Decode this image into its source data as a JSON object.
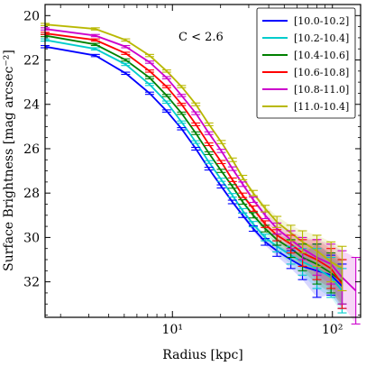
{
  "chart_data": {
    "type": "line",
    "annotation": "C < 2.6",
    "xlabel": "Radius [kpc]",
    "ylabel": "Surface Brightness [mag arcsec⁻²]",
    "x_scale": "log",
    "xlim": [
      1.6,
      150
    ],
    "ylim": [
      33.6,
      19.5
    ],
    "y_inverted": true,
    "x_ticks": [
      {
        "value": 10,
        "label": "10¹"
      },
      {
        "value": 100,
        "label": "10²"
      }
    ],
    "y_ticks": [
      20,
      22,
      24,
      26,
      28,
      30,
      32
    ],
    "grid": false,
    "legend": {
      "placement": "top-right"
    },
    "x": [
      1.6,
      3.3,
      5.1,
      7.2,
      9.2,
      11.4,
      14.0,
      16.9,
      20.2,
      23.7,
      27.5,
      32.0,
      38.0,
      45.0,
      55.0,
      65.0,
      80.0,
      98.0,
      115.0,
      140.0
    ],
    "series": [
      {
        "name": "[10.0-10.2]",
        "color": "#0000ff",
        "values": [
          21.4,
          21.8,
          22.6,
          23.5,
          24.3,
          25.1,
          26.0,
          26.9,
          27.7,
          28.4,
          29.0,
          29.6,
          30.2,
          30.6,
          31.0,
          31.3,
          31.5,
          31.7,
          32.2,
          null
        ],
        "err": [
          0.05,
          0.05,
          0.05,
          0.05,
          0.05,
          0.05,
          0.06,
          0.06,
          0.07,
          0.08,
          0.1,
          0.12,
          0.15,
          0.25,
          0.4,
          0.6,
          1.2,
          0.9,
          1.0,
          null
        ]
      },
      {
        "name": "[10.2-10.4]",
        "color": "#00cccc",
        "values": [
          21.1,
          21.5,
          22.2,
          23.1,
          23.9,
          24.8,
          25.7,
          26.6,
          27.4,
          28.1,
          28.8,
          29.4,
          30.0,
          30.4,
          30.8,
          31.1,
          31.4,
          31.8,
          32.4,
          null
        ],
        "err": [
          0.05,
          0.05,
          0.05,
          0.05,
          0.05,
          0.05,
          0.06,
          0.06,
          0.07,
          0.08,
          0.1,
          0.12,
          0.15,
          0.25,
          0.4,
          0.6,
          0.9,
          0.9,
          1.0,
          null
        ]
      },
      {
        "name": "[10.4-10.6]",
        "color": "#008000",
        "values": [
          20.9,
          21.3,
          22.0,
          22.8,
          23.6,
          24.4,
          25.3,
          26.2,
          27.0,
          27.7,
          28.4,
          29.0,
          29.6,
          30.1,
          30.5,
          30.9,
          31.2,
          31.6,
          32.0,
          null
        ],
        "err": [
          0.05,
          0.05,
          0.05,
          0.05,
          0.05,
          0.05,
          0.06,
          0.06,
          0.07,
          0.08,
          0.1,
          0.12,
          0.15,
          0.25,
          0.4,
          0.6,
          0.9,
          0.9,
          1.0,
          null
        ]
      },
      {
        "name": "[10.6-10.8]",
        "color": "#ff0000",
        "values": [
          20.8,
          21.1,
          21.7,
          22.5,
          23.2,
          24.0,
          24.9,
          25.8,
          26.6,
          27.4,
          28.1,
          28.7,
          29.4,
          29.9,
          30.3,
          30.7,
          31.0,
          31.4,
          32.1,
          null
        ],
        "err": [
          0.05,
          0.05,
          0.05,
          0.05,
          0.05,
          0.05,
          0.06,
          0.06,
          0.07,
          0.08,
          0.1,
          0.12,
          0.15,
          0.25,
          0.4,
          0.6,
          0.9,
          0.9,
          1.1,
          null
        ]
      },
      {
        "name": "[10.8-11.0]",
        "color": "#cc00cc",
        "values": [
          20.6,
          20.9,
          21.4,
          22.1,
          22.8,
          23.6,
          24.4,
          25.3,
          26.1,
          26.9,
          27.6,
          28.3,
          29.0,
          29.6,
          30.1,
          30.5,
          30.9,
          31.2,
          31.8,
          32.4
        ],
        "err": [
          0.05,
          0.05,
          0.05,
          0.05,
          0.05,
          0.05,
          0.06,
          0.06,
          0.07,
          0.08,
          0.1,
          0.12,
          0.15,
          0.25,
          0.4,
          0.5,
          0.8,
          0.9,
          1.2,
          1.5
        ]
      },
      {
        "name": "[11.0-10.4]",
        "color": "#b8b800",
        "values": [
          20.4,
          20.6,
          21.1,
          21.8,
          22.5,
          23.2,
          24.0,
          24.9,
          25.7,
          26.5,
          27.3,
          28.0,
          28.7,
          29.3,
          29.8,
          30.2,
          30.6,
          31.1,
          31.4,
          null
        ],
        "err": [
          0.05,
          0.05,
          0.05,
          0.05,
          0.05,
          0.05,
          0.06,
          0.06,
          0.07,
          0.08,
          0.1,
          0.12,
          0.15,
          0.25,
          0.35,
          0.5,
          0.7,
          0.9,
          1.0,
          null
        ]
      }
    ]
  }
}
